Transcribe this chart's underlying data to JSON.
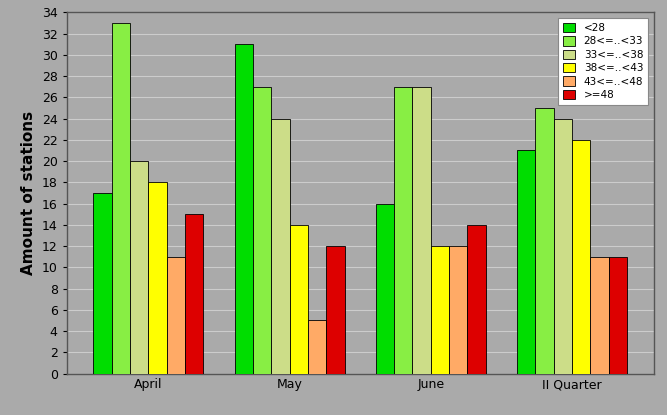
{
  "categories": [
    "April",
    "May",
    "June",
    "II Quarter"
  ],
  "series": [
    {
      "label": "<28",
      "color": "#00dd00",
      "values": [
        17,
        31,
        16,
        21
      ]
    },
    {
      "label": "28<=..<33",
      "color": "#88ee44",
      "values": [
        33,
        27,
        27,
        25
      ]
    },
    {
      "label": "33<=..<38",
      "color": "#ccdd88",
      "values": [
        20,
        24,
        27,
        24
      ]
    },
    {
      "label": "38<=..<43",
      "color": "#ffff00",
      "values": [
        18,
        14,
        12,
        22
      ]
    },
    {
      "label": "43<=..<48",
      "color": "#ffaa66",
      "values": [
        11,
        5,
        12,
        11
      ]
    },
    {
      "label": ">=48",
      "color": "#dd0000",
      "values": [
        15,
        12,
        14,
        11
      ]
    }
  ],
  "ylabel": "Amount of stations",
  "ylim": [
    0,
    34
  ],
  "yticks": [
    0,
    2,
    4,
    6,
    8,
    10,
    12,
    14,
    16,
    18,
    20,
    22,
    24,
    26,
    28,
    30,
    32,
    34
  ],
  "plot_bg_color": "#aaaaaa",
  "fig_bg_color": "#aaaaaa",
  "bar_edge_color": "#000000",
  "bar_edge_width": 0.6,
  "legend_fontsize": 7.5,
  "axis_label_fontsize": 11,
  "tick_fontsize": 9,
  "grid_color": "#cccccc",
  "grid_linewidth": 0.8,
  "bar_width": 0.13
}
